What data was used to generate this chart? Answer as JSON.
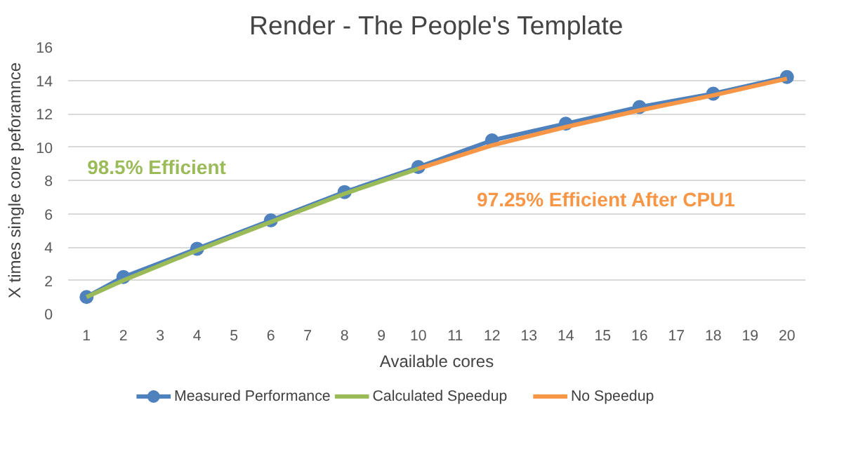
{
  "chart_data": {
    "type": "line",
    "title": "Render - The People's Template",
    "xlabel": "Available cores",
    "ylabel": "X times single core peforamnce",
    "xlim": [
      0.5,
      20.5
    ],
    "xticks": [
      1,
      2,
      3,
      4,
      5,
      6,
      7,
      8,
      9,
      10,
      11,
      12,
      13,
      14,
      15,
      16,
      17,
      18,
      19,
      20
    ],
    "ylim": [
      0,
      16
    ],
    "yticks": [
      0,
      2,
      4,
      6,
      8,
      10,
      12,
      14,
      16
    ],
    "grid": "y",
    "legend": "bottom",
    "series": [
      {
        "name": "Measured Performance",
        "color": "#4f81bd",
        "marker": "circle",
        "x": [
          1,
          2,
          4,
          6,
          8,
          10,
          12,
          14,
          16,
          18,
          20
        ],
        "values": [
          1.0,
          2.2,
          3.9,
          5.6,
          7.3,
          8.8,
          10.4,
          11.4,
          12.4,
          13.2,
          14.2
        ]
      },
      {
        "name": "Calculated Speedup",
        "color": "#9bbb59",
        "marker": "none",
        "x": [
          1,
          2,
          4,
          6,
          8,
          10
        ],
        "values": [
          1.0,
          2.0,
          3.8,
          5.5,
          7.2,
          8.7
        ]
      },
      {
        "name": "No Speedup",
        "color": "#f79646",
        "marker": "none",
        "x": [
          10,
          12,
          14,
          16,
          18,
          20
        ],
        "values": [
          8.7,
          10.1,
          11.2,
          12.2,
          13.1,
          14.1
        ]
      }
    ],
    "annotations": [
      "98.5% Efficient",
      "97.25% Efficient After CPU1"
    ]
  }
}
